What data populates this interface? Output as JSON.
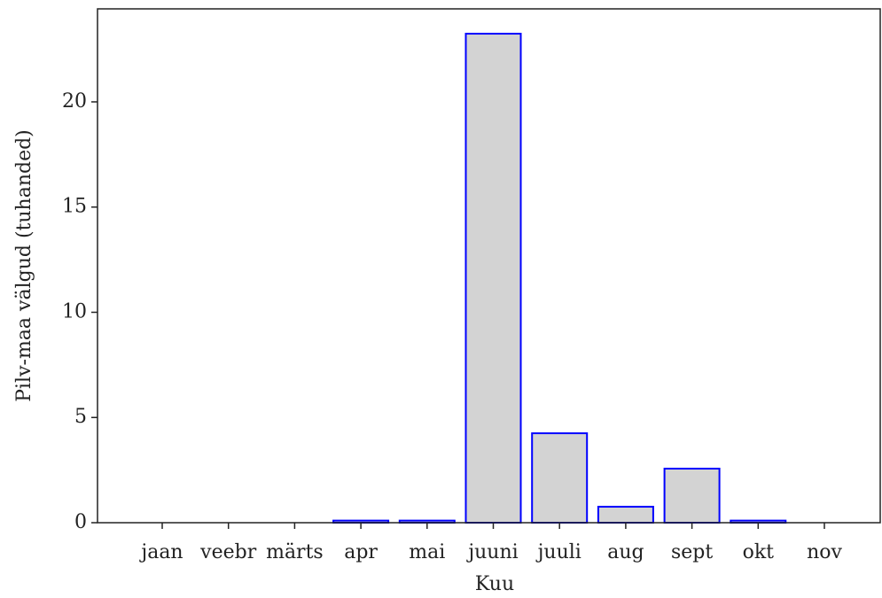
{
  "chart_data": {
    "type": "bar",
    "x_label": "Kuu",
    "y_label": "Pilv-maa välgud (tuhanded)",
    "categories": [
      "jaan",
      "veebr",
      "märts",
      "apr",
      "mai",
      "juuni",
      "juuli",
      "aug",
      "sept",
      "okt",
      "nov"
    ],
    "values": [
      0,
      0,
      0,
      0.1,
      0.1,
      23.24,
      4.25,
      0.76,
      2.57,
      0.1,
      0
    ],
    "color": "#d3d3d3",
    "edgecolor": "#0000ff",
    "ylim": [
      0,
      24.42
    ],
    "yticks": [
      0,
      5,
      10,
      15,
      20
    ],
    "grid": false
  }
}
